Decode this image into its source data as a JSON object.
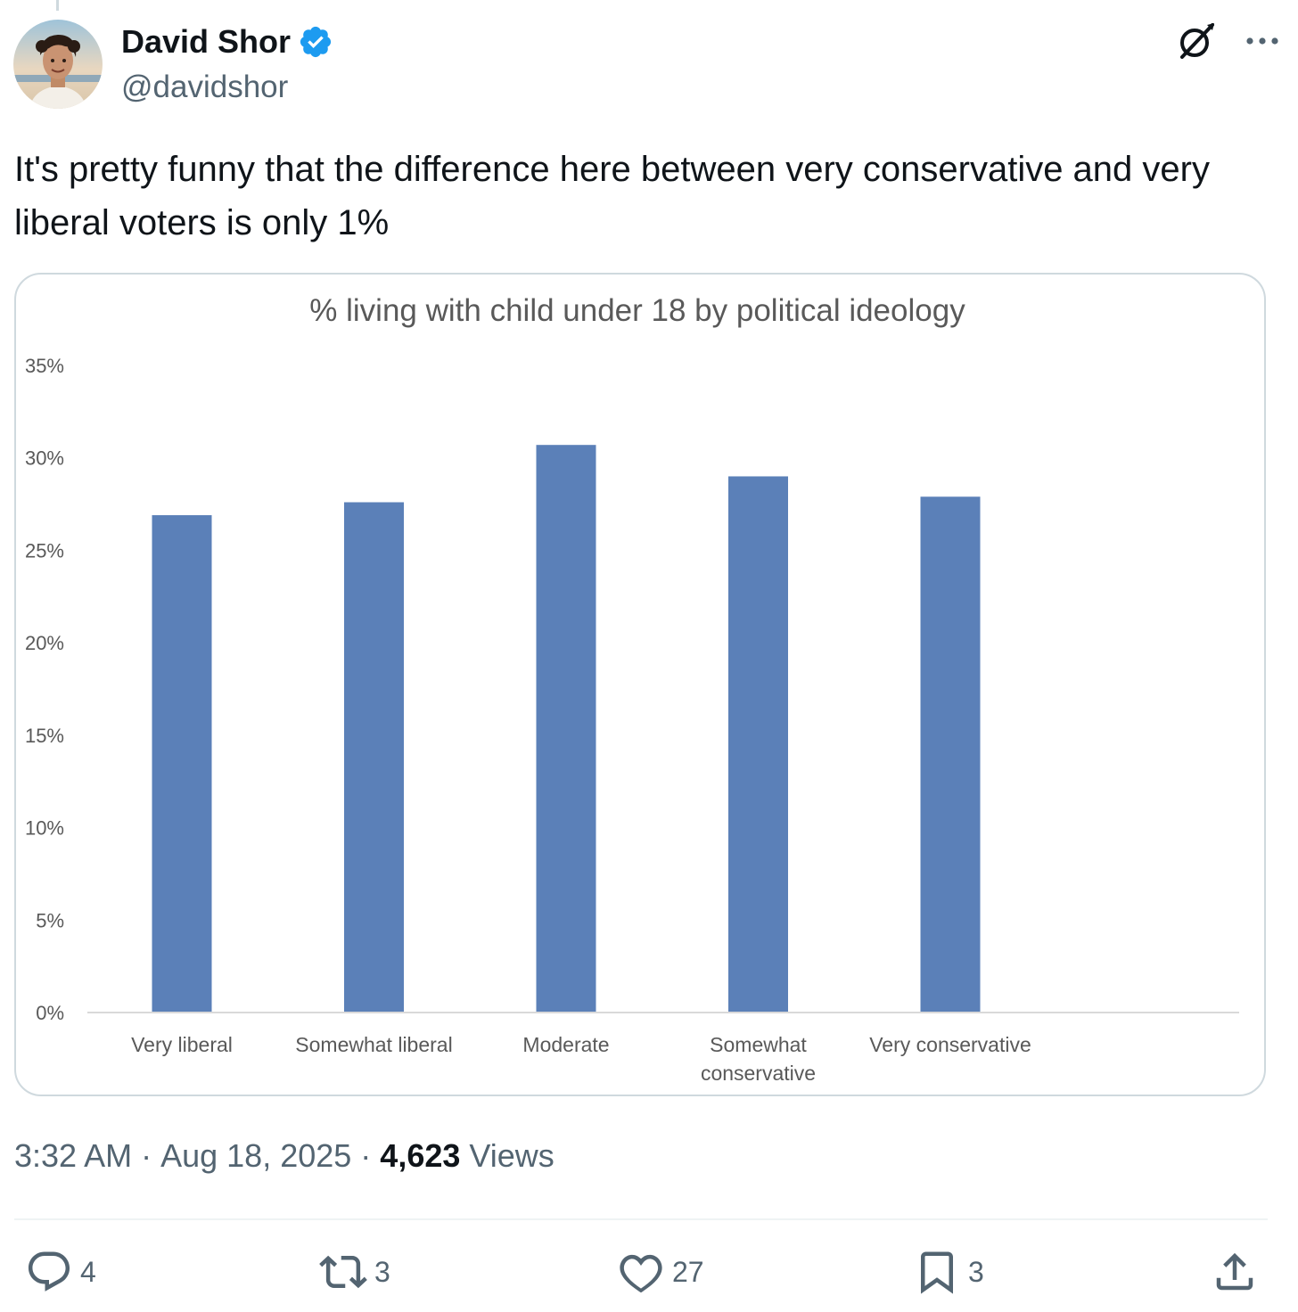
{
  "author": {
    "display_name": "David Shor",
    "handle": "@davidshor",
    "verified": true,
    "accent_color": "#1d9bf0"
  },
  "tweet": {
    "text": "It's pretty funny that the difference here between very conservative and very liberal voters is only 1%"
  },
  "meta": {
    "time": "3:32 AM",
    "separator": " · ",
    "date": "Aug 18, 2025",
    "views_count": "4,623",
    "views_label": "Views"
  },
  "actions": {
    "replies": "4",
    "reposts": "3",
    "likes": "27",
    "bookmarks": "3"
  },
  "icons": {
    "top": [
      "grok-icon",
      "more-icon"
    ],
    "actions": [
      "reply-icon",
      "repost-icon",
      "like-icon",
      "bookmark-icon",
      "share-icon"
    ]
  },
  "chart_data": {
    "type": "bar",
    "title": "% living with child under 18 by political ideology",
    "categories": [
      "Very liberal",
      "Somewhat liberal",
      "Moderate",
      "Somewhat conservative",
      "Very conservative"
    ],
    "category_lines": [
      [
        "Very liberal"
      ],
      [
        "Somewhat liberal"
      ],
      [
        "Moderate"
      ],
      [
        "Somewhat",
        "conservative"
      ],
      [
        "Very conservative"
      ]
    ],
    "values": [
      26.9,
      27.6,
      30.7,
      29.0,
      27.9
    ],
    "ylim": [
      0,
      35
    ],
    "yticks": [
      "0%",
      "5%",
      "10%",
      "15%",
      "20%",
      "25%",
      "30%",
      "35%"
    ],
    "ytick_values": [
      0,
      5,
      10,
      15,
      20,
      25,
      30,
      35
    ],
    "bar_color": "#5b80b8",
    "grid": false
  }
}
